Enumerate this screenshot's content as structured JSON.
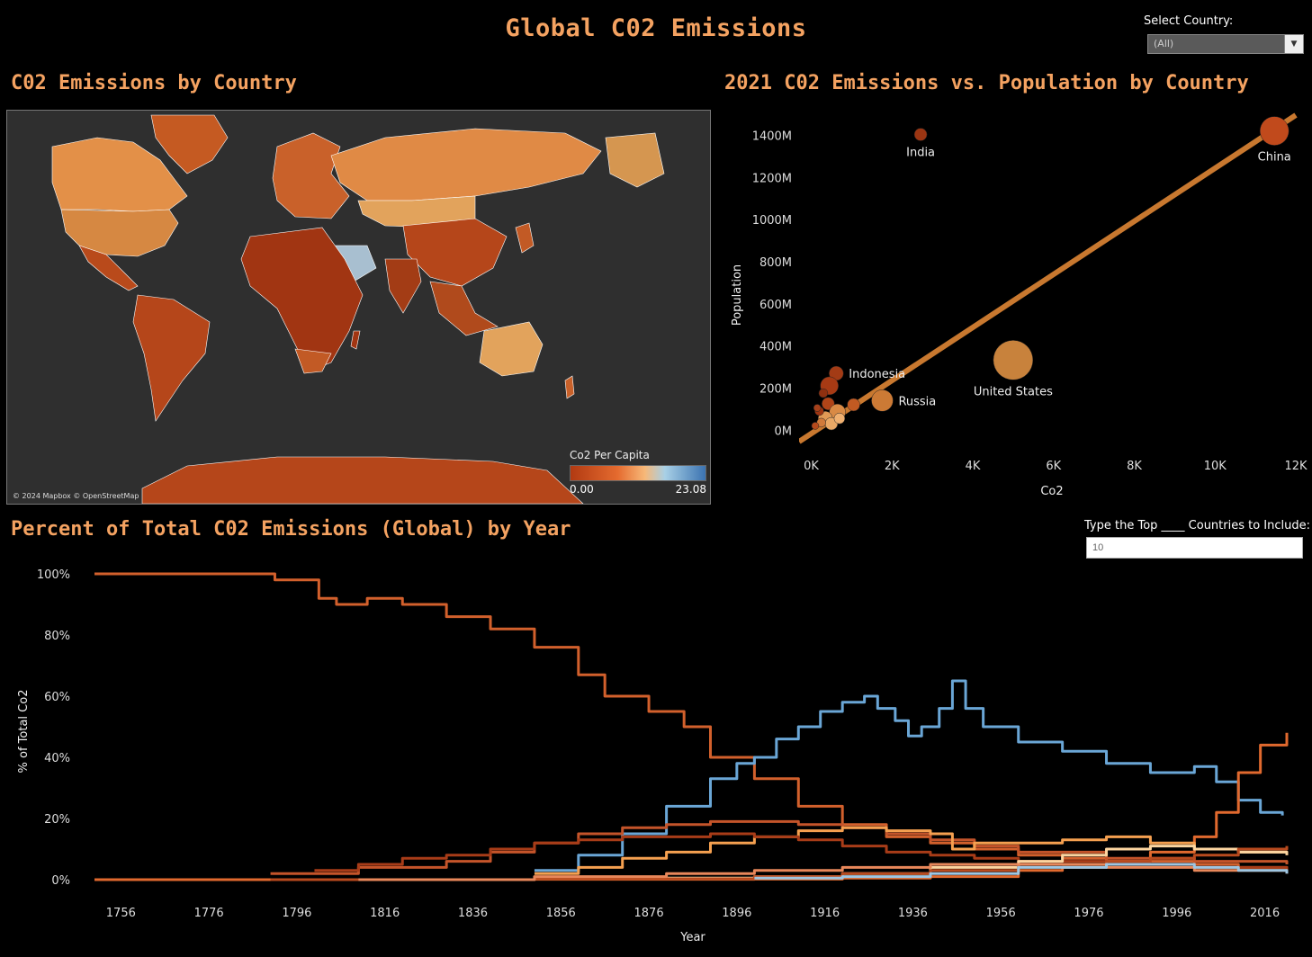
{
  "page_title": "Global C02 Emissions",
  "controls": {
    "select_label": "Select Country:",
    "select_value": "(All)",
    "topn_label": "Type the Top ____ Countries to Include:",
    "topn_value": "10"
  },
  "map": {
    "title": "C02 Emissions by Country",
    "credit": "© 2024 Mapbox © OpenStreetMap",
    "legend_title": "Co2 Per Capita",
    "legend_min": "0.00",
    "legend_max": "23.08",
    "colors": {
      "low": "#b23a12",
      "mid": "#f7b878",
      "high": "#3b73b1"
    }
  },
  "scatter": {
    "title": "2021 C02 Emissions vs. Population by Country",
    "chart_data": {
      "type": "scatter",
      "xlabel": "Co2",
      "ylabel": "Population",
      "xlim": [
        -300,
        12000
      ],
      "ylim": [
        -80,
        1500
      ],
      "xticks": [
        "0K",
        "2K",
        "4K",
        "6K",
        "8K",
        "10K",
        "12K"
      ],
      "xtick_values": [
        0,
        2000,
        4000,
        6000,
        8000,
        10000,
        12000
      ],
      "yticks": [
        "0M",
        "200M",
        "400M",
        "600M",
        "800M",
        "1000M",
        "1200M",
        "1400M"
      ],
      "ytick_values": [
        0,
        200,
        400,
        600,
        800,
        1000,
        1200,
        1400
      ],
      "trend": {
        "x": [
          -300,
          12000
        ],
        "y": [
          -50,
          1500
        ]
      },
      "points": [
        {
          "label": "China",
          "x": 11470,
          "y": 1425,
          "r": 16,
          "color": "#c14a1c"
        },
        {
          "label": "India",
          "x": 2710,
          "y": 1408,
          "r": 7,
          "color": "#9b3512"
        },
        {
          "label": "United States",
          "x": 5000,
          "y": 337,
          "r": 22,
          "color": "#c8823c"
        },
        {
          "label": "Indonesia",
          "x": 620,
          "y": 274,
          "r": 8,
          "color": "#a33b15"
        },
        {
          "label": "Russia",
          "x": 1760,
          "y": 145,
          "r": 12,
          "color": "#cc7a35"
        },
        {
          "label": "",
          "x": 450,
          "y": 215,
          "r": 10,
          "color": "#a73a14"
        },
        {
          "label": "",
          "x": 420,
          "y": 130,
          "r": 7,
          "color": "#b04418"
        },
        {
          "label": "",
          "x": 1050,
          "y": 125,
          "r": 7,
          "color": "#c25a22"
        },
        {
          "label": "",
          "x": 300,
          "y": 180,
          "r": 5,
          "color": "#8f3010"
        },
        {
          "label": "",
          "x": 650,
          "y": 90,
          "r": 9,
          "color": "#d98a45"
        },
        {
          "label": "",
          "x": 350,
          "y": 60,
          "r": 8,
          "color": "#e19a55"
        },
        {
          "label": "",
          "x": 500,
          "y": 35,
          "r": 7,
          "color": "#eaa865"
        },
        {
          "label": "",
          "x": 200,
          "y": 95,
          "r": 5,
          "color": "#9e3512"
        },
        {
          "label": "",
          "x": 250,
          "y": 40,
          "r": 5,
          "color": "#d17a3a"
        },
        {
          "label": "",
          "x": 100,
          "y": 25,
          "r": 4,
          "color": "#b54a1c"
        },
        {
          "label": "",
          "x": 700,
          "y": 60,
          "r": 6,
          "color": "#f0b070"
        },
        {
          "label": "",
          "x": 150,
          "y": 110,
          "r": 4,
          "color": "#a5401a"
        }
      ]
    }
  },
  "lines": {
    "title": "Percent of Total C02 Emissions (Global) by Year",
    "chart_data": {
      "type": "line",
      "xlabel": "Year",
      "ylabel": "% of Total Co2",
      "xlim": [
        1750,
        2021
      ],
      "ylim": [
        0,
        100
      ],
      "xticks": [
        "1756",
        "1776",
        "1796",
        "1816",
        "1836",
        "1856",
        "1876",
        "1896",
        "1916",
        "1936",
        "1956",
        "1976",
        "1996",
        "2016"
      ],
      "xtick_values": [
        1756,
        1776,
        1796,
        1816,
        1836,
        1856,
        1876,
        1896,
        1916,
        1936,
        1956,
        1976,
        1996,
        2016
      ],
      "yticks": [
        "0%",
        "20%",
        "40%",
        "60%",
        "80%",
        "100%"
      ],
      "ytick_values": [
        0,
        20,
        40,
        60,
        80,
        100
      ],
      "series": [
        {
          "color": "#d2602c",
          "x": [
            1750,
            1790,
            1791,
            1800,
            1801,
            1805,
            1812,
            1820,
            1830,
            1840,
            1850,
            1860,
            1866,
            1876,
            1884,
            1890,
            1900,
            1910,
            1920,
            1930,
            1940,
            1950,
            1960,
            1970,
            1980,
            1990,
            2000,
            2010,
            2021
          ],
          "y": [
            100,
            100,
            98,
            98,
            92,
            90,
            92,
            90,
            86,
            82,
            76,
            67,
            60,
            55,
            50,
            40,
            33,
            24,
            18,
            14,
            12,
            10,
            8,
            7,
            6,
            6,
            5,
            4,
            3
          ]
        },
        {
          "color": "#6aa6d6",
          "x": [
            1850,
            1860,
            1870,
            1880,
            1890,
            1896,
            1900,
            1905,
            1910,
            1915,
            1920,
            1925,
            1928,
            1932,
            1935,
            1938,
            1942,
            1945,
            1948,
            1952,
            1960,
            1970,
            1980,
            1990,
            2000,
            2005,
            2010,
            2015,
            2020
          ],
          "y": [
            3,
            8,
            15,
            24,
            33,
            38,
            40,
            46,
            50,
            55,
            58,
            60,
            56,
            52,
            47,
            50,
            56,
            65,
            56,
            50,
            45,
            42,
            38,
            35,
            37,
            32,
            26,
            22,
            21
          ]
        },
        {
          "color": "#e0692e",
          "x": [
            1750,
            1800,
            1850,
            1900,
            1920,
            1940,
            1960,
            1970,
            1980,
            1990,
            2000,
            2005,
            2010,
            2015,
            2021
          ],
          "y": [
            0,
            0,
            0.1,
            0.2,
            0.5,
            1,
            3,
            4,
            6,
            9,
            14,
            22,
            35,
            44,
            48
          ]
        },
        {
          "color": "#c4542a",
          "x": [
            1790,
            1810,
            1830,
            1840,
            1850,
            1860,
            1870,
            1880,
            1890,
            1900,
            1910,
            1920,
            1930,
            1940,
            1950,
            1960,
            1980,
            2000,
            2021
          ],
          "y": [
            2,
            4,
            6,
            9,
            12,
            15,
            17,
            18,
            19,
            19,
            18,
            17,
            15,
            13,
            11,
            9,
            7,
            6,
            5
          ]
        },
        {
          "color": "#f5a050",
          "x": [
            1850,
            1860,
            1870,
            1880,
            1890,
            1900,
            1910,
            1920,
            1930,
            1940,
            1945,
            1950,
            1960,
            1970,
            1980,
            1990,
            2000,
            2010,
            2021
          ],
          "y": [
            2,
            4,
            7,
            9,
            12,
            14,
            16,
            17,
            16,
            15,
            10,
            12,
            12,
            13,
            14,
            12,
            10,
            9,
            8
          ]
        },
        {
          "color": "#a83c18",
          "x": [
            1800,
            1810,
            1820,
            1830,
            1840,
            1850,
            1860,
            1870,
            1880,
            1890,
            1900,
            1910,
            1920,
            1930,
            1940,
            1950,
            1960,
            1980,
            2000,
            2021
          ],
          "y": [
            3,
            5,
            7,
            8,
            10,
            12,
            13,
            14,
            14,
            15,
            14,
            13,
            11,
            9,
            8,
            7,
            6,
            5,
            4,
            3
          ]
        },
        {
          "color": "#fcd5a0",
          "x": [
            1880,
            1900,
            1920,
            1940,
            1960,
            1970,
            1980,
            1990,
            2000,
            2010,
            2021
          ],
          "y": [
            0.5,
            1,
            2,
            4,
            6,
            8,
            10,
            11,
            10,
            9,
            8
          ]
        },
        {
          "color": "#b84a1e",
          "x": [
            1790,
            1850,
            1900,
            1920,
            1940,
            1960,
            1970,
            1980,
            1990,
            2000,
            2010,
            2021
          ],
          "y": [
            0,
            0.3,
            1,
            2,
            3,
            5,
            5,
            6,
            7,
            8,
            10,
            11
          ]
        },
        {
          "color": "#e8875a",
          "x": [
            1810,
            1850,
            1880,
            1900,
            1920,
            1940,
            1960,
            1980,
            2000,
            2021
          ],
          "y": [
            0,
            1,
            2,
            3,
            4,
            5,
            5,
            4,
            3,
            2
          ]
        },
        {
          "color": "#9ec6e2",
          "x": [
            1900,
            1920,
            1940,
            1960,
            1980,
            1990,
            2000,
            2010,
            2021
          ],
          "y": [
            0.5,
            1,
            2,
            4,
            5,
            5,
            4,
            3,
            2
          ]
        }
      ]
    }
  }
}
